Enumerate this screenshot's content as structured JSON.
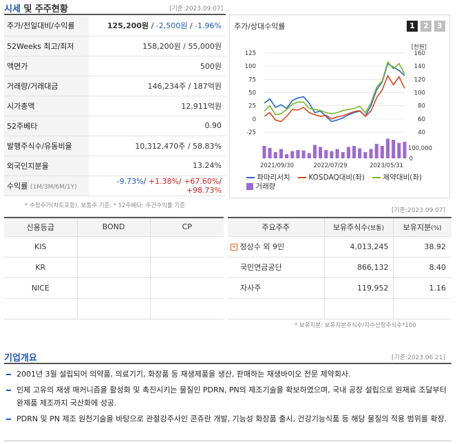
{
  "price": {
    "title_prefix": "시세",
    "title_suffix": " 및 주주현황",
    "date": "[기준:2023.09.07]",
    "rows": [
      {
        "label": "주가/전일대비/수익률"
      },
      {
        "label": "52Weeks 최고/최저",
        "value": "158,200원 / 55,000원"
      },
      {
        "label": "액면가",
        "value": "500원"
      },
      {
        "label": "거래량/거래대금",
        "value": "146,234주 / 187억원"
      },
      {
        "label": "시가총액",
        "value": "12,911억원"
      },
      {
        "label": "52주베타",
        "value": "0.90"
      },
      {
        "label": "발행주식수/유동비율",
        "value": "10,312,470주 / 58.83%"
      },
      {
        "label": "외국인지분율",
        "value": "13.24%"
      },
      {
        "label": "수익률",
        "label_sub": "(1M/3M/6M/1Y)"
      }
    ],
    "price_now": "125,200원",
    "price_sep1": " / ",
    "price_change": "-2,500원",
    "price_sep2": " / ",
    "price_return": "-1.96%",
    "returns": [
      "-9.73%",
      "+1.38%",
      "+67.60%",
      "+98.73%"
    ],
    "note": "* 수정주가(차트포함), 보통주 기준, * 52주베타: 주간수익률 기준"
  },
  "chart_panel": {
    "title": "주가/상대수익률",
    "tabs": [
      "1",
      "2",
      "3"
    ],
    "unit_label": "[천원]"
  },
  "chart_data": {
    "type": "line",
    "x_ticks": [
      "2021/09/30",
      "2022/07/29",
      "2023/05/31"
    ],
    "y_left_ticks": [
      125,
      100,
      75,
      50,
      25,
      0,
      -25
    ],
    "y_right_ticks": [
      160,
      140,
      120,
      100,
      80,
      60,
      40
    ],
    "volume_tick": "100,000",
    "volume_tick_zero": "0",
    "ylim_left": [
      -25,
      125
    ],
    "ylim_right": [
      40,
      160
    ],
    "x_index": [
      0,
      1,
      2,
      3,
      4,
      5,
      6,
      7,
      8,
      9,
      10,
      11,
      12,
      13,
      14,
      15,
      16,
      17,
      18,
      19,
      20,
      21,
      22,
      23,
      24,
      25
    ],
    "series": [
      {
        "name": "파마리서치",
        "color": "#2a64c8",
        "values": [
          30,
          38,
          22,
          27,
          20,
          35,
          40,
          42,
          30,
          12,
          15,
          5,
          -5,
          -2,
          2,
          8,
          12,
          15,
          6,
          25,
          55,
          70,
          105,
          98,
          92,
          82
        ]
      },
      {
        "name": "KOSDAQ대비(좌)",
        "color": "#e0451b",
        "values": [
          5,
          12,
          -2,
          -5,
          5,
          18,
          17,
          22,
          12,
          8,
          5,
          7,
          0,
          4,
          6,
          10,
          14,
          16,
          5,
          15,
          40,
          55,
          82,
          65,
          80,
          58
        ]
      },
      {
        "name": "제약대비(좌)",
        "color": "#73b82a",
        "values": [
          15,
          25,
          8,
          10,
          18,
          28,
          32,
          32,
          20,
          18,
          16,
          12,
          10,
          12,
          16,
          18,
          20,
          24,
          12,
          30,
          60,
          72,
          108,
          95,
          105,
          85
        ]
      }
    ],
    "volume": {
      "name": "거래량",
      "color": "#9b6ad0",
      "values": [
        60000,
        50000,
        30000,
        45000,
        20000,
        35000,
        40000,
        38000,
        25000,
        65000,
        55000,
        40000,
        35000,
        45000,
        30000,
        55000,
        60000,
        48000,
        30000,
        45000,
        70000,
        60000,
        95000,
        90000,
        75000,
        80000
      ]
    },
    "legend": [
      "파마리서치",
      "KOSDAQ대비(좌)",
      "제약대비(좌)",
      "거래량"
    ]
  },
  "credit": {
    "headers": [
      "신용등급",
      "BOND",
      "CP"
    ],
    "rows": [
      [
        "KIS",
        "",
        ""
      ],
      [
        "KR",
        "",
        ""
      ],
      [
        "NICE",
        "",
        ""
      ],
      [
        "",
        "",
        ""
      ]
    ]
  },
  "holders": {
    "date": "[기준:2023.09.07]",
    "headers": [
      "주요주주",
      "보유주식수",
      "(보통)",
      "보유지분",
      "(%)"
    ],
    "rows": [
      {
        "name": "정상수 외 9인",
        "shares": "4,013,245",
        "pct": "38.92"
      },
      {
        "name": "국민연금공단",
        "shares": "866,132",
        "pct": "8.40"
      },
      {
        "name": "자사주",
        "shares": "119,952",
        "pct": "1.16"
      }
    ],
    "note": "* 보유지분: 보유지분주식수/지수산정주식수*100"
  },
  "overview": {
    "title": "기업개요",
    "date": "[기준:2023.06.21]",
    "items": [
      "2001년 3월 설립되어 의약품, 의료기기, 화장품 등 재생제품을 생산, 판매하는 재생바이오 전문 제약회사.",
      "인체 고유의 재생 매커니즘을 활성화 및 촉진시키는 물질인 PDRN, PN의 제조기술을 확보하였으며, 국내 공장 설립으로 원재료 조달부터 완제품 제조까지 국산화에 성공.",
      "PDRN 및 PN 제조 원천기술을 바탕으로 관절강주사인 콘쥬란 개발, 기능성 화장품 출시, 건강기능식품 등 해당 물질의 적용 범위를 확장."
    ]
  }
}
